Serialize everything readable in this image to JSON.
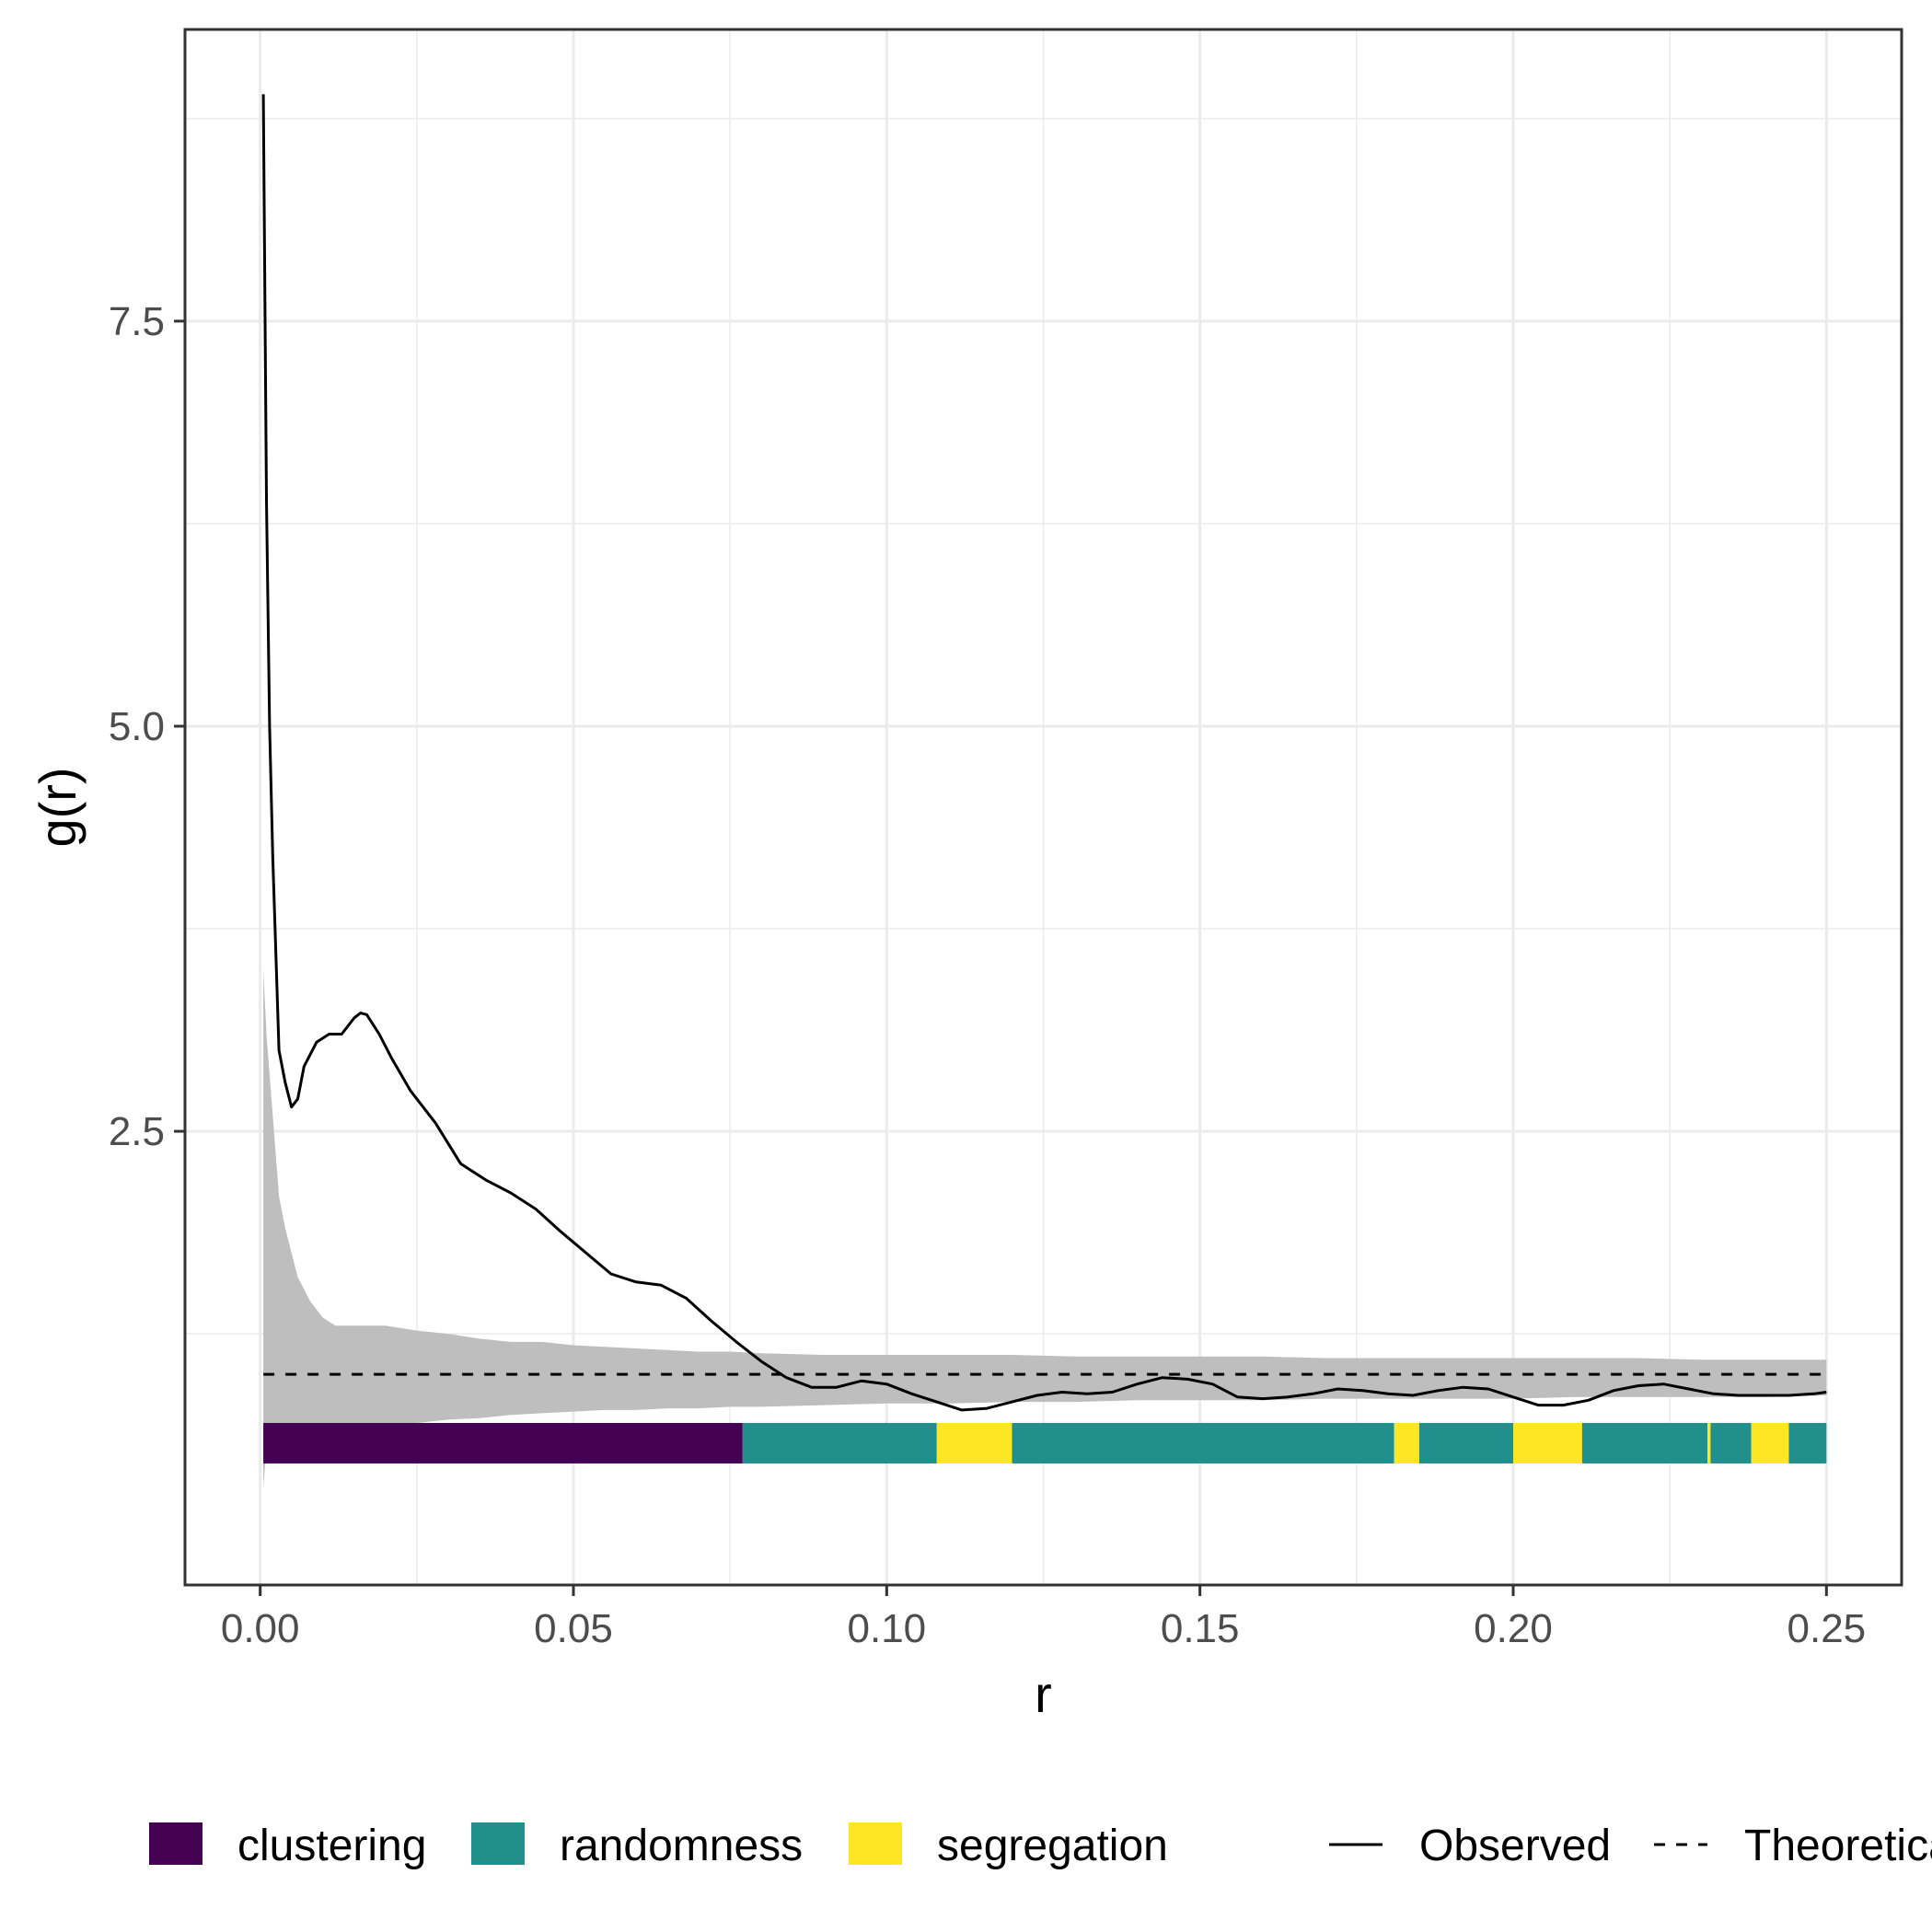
{
  "chart_data": {
    "type": "line",
    "xlabel": "r",
    "ylabel": "g(r)",
    "xlim": [
      -0.012,
      0.262
    ],
    "ylim": [
      -0.3,
      9.3
    ],
    "x_ticks": [
      {
        "value": 0.0,
        "label": "0.00"
      },
      {
        "value": 0.05,
        "label": "0.05"
      },
      {
        "value": 0.1,
        "label": "0.10"
      },
      {
        "value": 0.15,
        "label": "0.15"
      },
      {
        "value": 0.2,
        "label": "0.20"
      },
      {
        "value": 0.25,
        "label": "0.25"
      }
    ],
    "y_ticks": [
      {
        "value": 2.5,
        "label": "2.5"
      },
      {
        "value": 5.0,
        "label": "5.0"
      },
      {
        "value": 7.5,
        "label": "7.5"
      }
    ],
    "grid": true,
    "legend_position": "bottom",
    "theoretical": 1.0,
    "series": [
      {
        "name": "Observed",
        "style": "solid",
        "color": "#000000",
        "x": [
          0.0005,
          0.001,
          0.0015,
          0.002,
          0.003,
          0.004,
          0.005,
          0.006,
          0.007,
          0.009,
          0.011,
          0.013,
          0.015,
          0.016,
          0.017,
          0.019,
          0.021,
          0.024,
          0.028,
          0.032,
          0.036,
          0.04,
          0.044,
          0.048,
          0.052,
          0.056,
          0.06,
          0.064,
          0.068,
          0.072,
          0.076,
          0.08,
          0.084,
          0.088,
          0.092,
          0.096,
          0.1,
          0.104,
          0.108,
          0.112,
          0.116,
          0.12,
          0.124,
          0.128,
          0.132,
          0.136,
          0.14,
          0.144,
          0.148,
          0.152,
          0.156,
          0.16,
          0.164,
          0.168,
          0.172,
          0.176,
          0.18,
          0.184,
          0.188,
          0.192,
          0.196,
          0.2,
          0.204,
          0.208,
          0.212,
          0.216,
          0.22,
          0.224,
          0.228,
          0.232,
          0.236,
          0.24,
          0.244,
          0.248,
          0.25
        ],
        "y": [
          8.9,
          6.4,
          5.0,
          4.2,
          3.0,
          2.8,
          2.65,
          2.7,
          2.9,
          3.05,
          3.1,
          3.1,
          3.2,
          3.23,
          3.22,
          3.1,
          2.95,
          2.75,
          2.55,
          2.3,
          2.2,
          2.12,
          2.02,
          1.88,
          1.75,
          1.62,
          1.57,
          1.55,
          1.47,
          1.33,
          1.2,
          1.08,
          0.98,
          0.92,
          0.92,
          0.96,
          0.94,
          0.88,
          0.83,
          0.78,
          0.79,
          0.83,
          0.87,
          0.89,
          0.88,
          0.89,
          0.94,
          0.98,
          0.97,
          0.94,
          0.86,
          0.85,
          0.86,
          0.88,
          0.91,
          0.9,
          0.88,
          0.87,
          0.9,
          0.92,
          0.91,
          0.86,
          0.81,
          0.81,
          0.84,
          0.9,
          0.93,
          0.94,
          0.91,
          0.88,
          0.87,
          0.87,
          0.87,
          0.88,
          0.89
        ]
      },
      {
        "name": "Theoretical",
        "style": "dashed",
        "color": "#000000",
        "x": [
          0.0005,
          0.25
        ],
        "y": [
          1.0,
          1.0
        ]
      }
    ],
    "envelope": {
      "color": "#bebebe",
      "x": [
        0.0005,
        0.001,
        0.002,
        0.003,
        0.004,
        0.005,
        0.006,
        0.008,
        0.01,
        0.012,
        0.015,
        0.02,
        0.025,
        0.03,
        0.035,
        0.04,
        0.045,
        0.05,
        0.055,
        0.06,
        0.065,
        0.07,
        0.075,
        0.08,
        0.09,
        0.1,
        0.11,
        0.12,
        0.13,
        0.14,
        0.15,
        0.16,
        0.17,
        0.18,
        0.19,
        0.2,
        0.21,
        0.22,
        0.23,
        0.24,
        0.25
      ],
      "lo": [
        0.3,
        0.55,
        0.5,
        0.5,
        0.45,
        0.5,
        0.55,
        0.6,
        0.62,
        0.63,
        0.65,
        0.68,
        0.7,
        0.72,
        0.73,
        0.75,
        0.76,
        0.77,
        0.78,
        0.78,
        0.79,
        0.79,
        0.8,
        0.8,
        0.81,
        0.82,
        0.82,
        0.83,
        0.83,
        0.84,
        0.84,
        0.84,
        0.85,
        0.85,
        0.85,
        0.85,
        0.86,
        0.86,
        0.86,
        0.86,
        0.87
      ],
      "hi": [
        3.5,
        3.1,
        2.6,
        2.1,
        1.9,
        1.75,
        1.6,
        1.45,
        1.35,
        1.3,
        1.3,
        1.3,
        1.27,
        1.25,
        1.22,
        1.2,
        1.2,
        1.18,
        1.17,
        1.16,
        1.15,
        1.14,
        1.14,
        1.13,
        1.12,
        1.12,
        1.12,
        1.12,
        1.11,
        1.11,
        1.11,
        1.11,
        1.1,
        1.1,
        1.1,
        1.1,
        1.1,
        1.1,
        1.09,
        1.09,
        1.09
      ]
    },
    "category_bar": {
      "y_from": 0.45,
      "y_to": 0.7,
      "segments": [
        {
          "from": 0.0005,
          "to": 0.077,
          "category": "clustering"
        },
        {
          "from": 0.077,
          "to": 0.108,
          "category": "randomness"
        },
        {
          "from": 0.108,
          "to": 0.12,
          "category": "segregation"
        },
        {
          "from": 0.12,
          "to": 0.181,
          "category": "randomness"
        },
        {
          "from": 0.181,
          "to": 0.185,
          "category": "segregation"
        },
        {
          "from": 0.185,
          "to": 0.2,
          "category": "randomness"
        },
        {
          "from": 0.2,
          "to": 0.211,
          "category": "segregation"
        },
        {
          "from": 0.211,
          "to": 0.231,
          "category": "randomness"
        },
        {
          "from": 0.231,
          "to": 0.2315,
          "category": "segregation"
        },
        {
          "from": 0.2315,
          "to": 0.238,
          "category": "randomness"
        },
        {
          "from": 0.238,
          "to": 0.244,
          "category": "segregation"
        },
        {
          "from": 0.244,
          "to": 0.25,
          "category": "randomness"
        }
      ]
    },
    "legend": {
      "fill_items": [
        {
          "label": "clustering",
          "color": "#440154"
        },
        {
          "label": "randomness",
          "color": "#21908c"
        },
        {
          "label": "segregation",
          "color": "#fde725"
        }
      ],
      "line_items": [
        {
          "label": "Observed",
          "style": "solid"
        },
        {
          "label": "Theoretical",
          "style": "dashed"
        }
      ]
    }
  }
}
